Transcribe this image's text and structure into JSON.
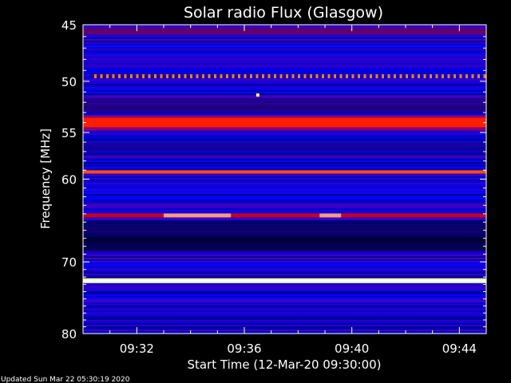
{
  "chart_data": {
    "type": "heatmap",
    "title": "Solar radio Flux (Glasgow)",
    "xlabel": "Start Time (12-Mar-20 09:30:00)",
    "ylabel": "Frequency [MHz]",
    "x_ticks": [
      "09:32",
      "09:36",
      "09:40",
      "09:44"
    ],
    "x_tick_minutes": [
      2,
      6,
      10,
      14
    ],
    "x_range_minutes": [
      0,
      15
    ],
    "y_ticks": [
      45,
      50,
      55,
      60,
      70,
      80
    ],
    "y_scale": "log",
    "ylim": [
      45,
      80
    ],
    "y_direction": "downward-increasing",
    "background_color": "#0000c8",
    "bright_bands": [
      {
        "freq_mhz": 49.5,
        "color": "#ff8000",
        "note": "dashed"
      },
      {
        "freq_mhz": 54.0,
        "color": "#ff1e00"
      },
      {
        "freq_mhz": 59.2,
        "color": "#ff5000"
      },
      {
        "freq_mhz": 64.2,
        "color": "#c8001e"
      },
      {
        "freq_mhz": 72.5,
        "color": "#ffffa0"
      }
    ],
    "colormap": [
      "#00008c",
      "#0000ff",
      "#6400c8",
      "#c80064",
      "#ff0000",
      "#ff8000",
      "#ffff80",
      "#ffffff"
    ]
  },
  "footer": "Updated Sun Mar 22 05:30:19 2020"
}
